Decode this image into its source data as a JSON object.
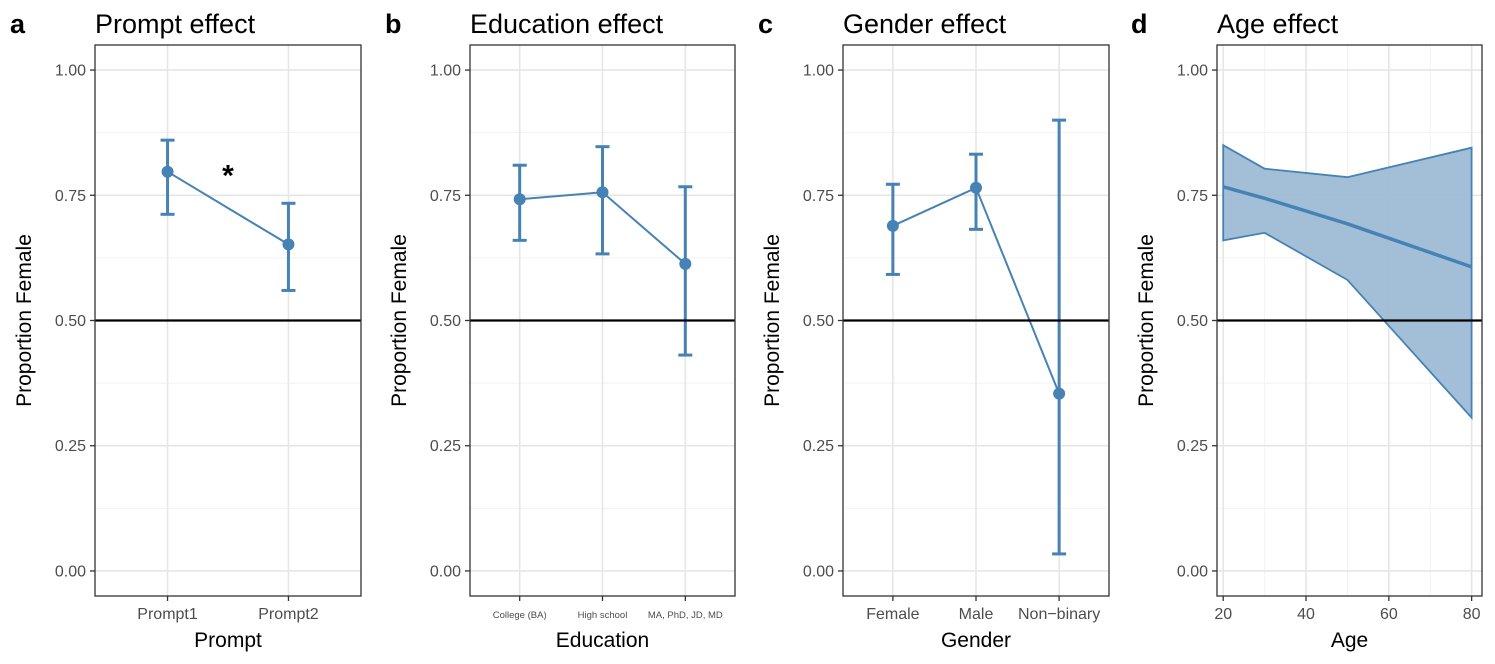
{
  "chart_data": [
    {
      "type": "line",
      "panel_letter": "a",
      "title": "Prompt effect",
      "xlabel": "Prompt",
      "ylabel": "Proportion Female",
      "ylim": [
        -0.05,
        1.05
      ],
      "y_ticks": [
        "0.00",
        "0.25",
        "0.50",
        "0.75",
        "1.00"
      ],
      "y_tick_values": [
        0,
        0.25,
        0.5,
        0.75,
        1.0
      ],
      "reference_line": 0.5,
      "categories": [
        "Prompt1",
        "Prompt2"
      ],
      "values": [
        0.797,
        0.652
      ],
      "ci_low": [
        0.712,
        0.56
      ],
      "ci_high": [
        0.86,
        0.734
      ],
      "annotation": "*",
      "color": "#4682b4"
    },
    {
      "type": "line",
      "panel_letter": "b",
      "title": "Education effect",
      "xlabel": "Education",
      "ylabel": "Proportion Female",
      "ylim": [
        -0.05,
        1.05
      ],
      "y_ticks": [
        "0.00",
        "0.25",
        "0.50",
        "0.75",
        "1.00"
      ],
      "y_tick_values": [
        0,
        0.25,
        0.5,
        0.75,
        1.0
      ],
      "reference_line": 0.5,
      "categories": [
        "College (BA)",
        "High school",
        "MA, PhD, JD, MD"
      ],
      "values": [
        0.742,
        0.756,
        0.613
      ],
      "ci_low": [
        0.66,
        0.633,
        0.431
      ],
      "ci_high": [
        0.81,
        0.847,
        0.767
      ],
      "color": "#4682b4"
    },
    {
      "type": "line",
      "panel_letter": "c",
      "title": "Gender effect",
      "xlabel": "Gender",
      "ylabel": "Proportion Female",
      "ylim": [
        -0.05,
        1.05
      ],
      "y_ticks": [
        "0.00",
        "0.25",
        "0.50",
        "0.75",
        "1.00"
      ],
      "y_tick_values": [
        0,
        0.25,
        0.5,
        0.75,
        1.0
      ],
      "reference_line": 0.5,
      "categories": [
        "Female",
        "Male",
        "Non−binary"
      ],
      "values": [
        0.689,
        0.765,
        0.354
      ],
      "ci_low": [
        0.592,
        0.682,
        0.034
      ],
      "ci_high": [
        0.772,
        0.832,
        0.9
      ],
      "color": "#4682b4"
    },
    {
      "type": "area",
      "panel_letter": "d",
      "title": "Age effect",
      "xlabel": "Age",
      "ylabel": "Proportion Female",
      "ylim": [
        -0.05,
        1.05
      ],
      "xlim": [
        18.5,
        82.5
      ],
      "y_ticks": [
        "0.00",
        "0.25",
        "0.50",
        "0.75",
        "1.00"
      ],
      "y_tick_values": [
        0,
        0.25,
        0.5,
        0.75,
        1.0
      ],
      "x_ticks": [
        "20",
        "40",
        "60",
        "80"
      ],
      "x_tick_values": [
        20,
        40,
        60,
        80
      ],
      "reference_line": 0.5,
      "x": [
        20,
        30,
        50,
        80
      ],
      "fit": [
        0.767,
        0.744,
        0.693,
        0.607
      ],
      "band_low": [
        0.66,
        0.675,
        0.581,
        0.306
      ],
      "band_high": [
        0.85,
        0.803,
        0.786,
        0.845
      ],
      "color": "#4682b4",
      "band_color": "#9ebad5"
    }
  ]
}
